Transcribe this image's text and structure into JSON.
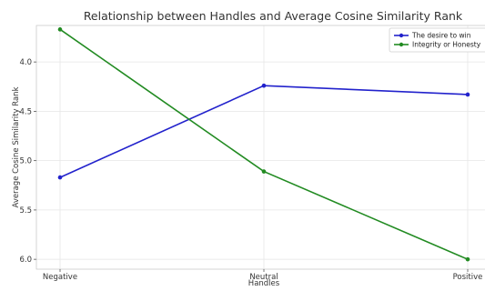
{
  "chart_data": {
    "type": "line",
    "title": "Relationship between Handles and Average Cosine Similarity Rank",
    "xlabel": "Handles",
    "ylabel": "Average Cosine Similarity Rank",
    "categories": [
      "Negative",
      "Neutral",
      "Positive"
    ],
    "y_inverted": true,
    "ylim": [
      3.63,
      6.1
    ],
    "yticks": [
      "4.0",
      "4.5",
      "5.0",
      "5.5",
      "6.0"
    ],
    "grid": true,
    "legend_position": "top-right",
    "series": [
      {
        "name": "The desire to win",
        "color": "#2222cc",
        "values": [
          5.17,
          4.24,
          4.33
        ]
      },
      {
        "name": "Integrity or Honesty",
        "color": "#228b22",
        "values": [
          3.67,
          5.11,
          6.0
        ]
      }
    ]
  }
}
